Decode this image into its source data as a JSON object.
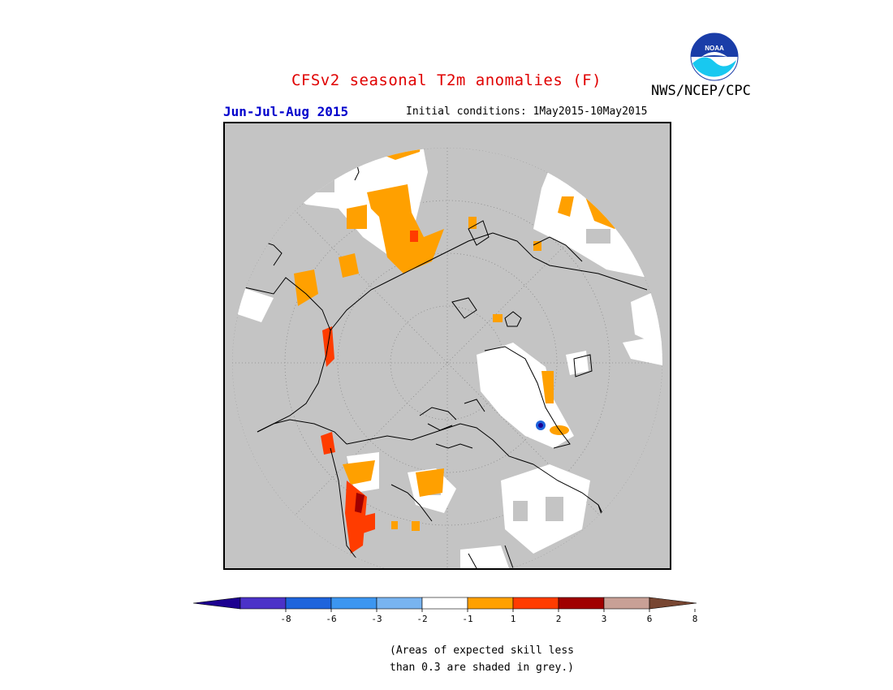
{
  "header": {
    "title": "CFSv2 seasonal T2m anomalies (F)",
    "period": "Jun-Jul-Aug 2015",
    "initial_conditions": "Initial conditions: 1May2015-10May2015",
    "agency": "NWS/NCEP/CPC",
    "logo_text": "NOAA"
  },
  "map": {
    "projection": "north-polar-stereographic",
    "background_color": "#c4c4c4",
    "grid": "dotted lat/lon",
    "skill_mask_color": "#c4c4c4"
  },
  "legend": {
    "boundaries": [
      "-8",
      "-6",
      "-3",
      "-2",
      "-1",
      "1",
      "2",
      "3",
      "6",
      "8"
    ],
    "colors": [
      "#1c0090",
      "#4b32c8",
      "#1e64dc",
      "#3c96f0",
      "#78b4f0",
      "#ffffff",
      "#ffa000",
      "#ff3c00",
      "#a00000",
      "#c8a096",
      "#784632"
    ]
  },
  "footnote": {
    "line1": "(Areas of expected skill less",
    "line2": "than 0.3 are shaded in grey.)"
  }
}
